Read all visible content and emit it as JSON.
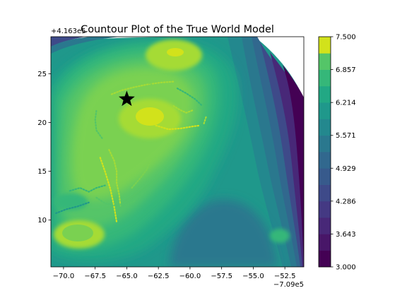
{
  "chart_data": {
    "type": "contour",
    "title": "Countour Plot of the True World Model",
    "xlabel": "",
    "ylabel": "",
    "x_offset_label": "−7.09e5",
    "y_offset_label": "+4.163e5",
    "xlim": [
      -71.0,
      -51.0
    ],
    "ylim": [
      5.2,
      28.8
    ],
    "x_ticks": [
      -70.0,
      -67.5,
      -65.0,
      -62.5,
      -60.0,
      -57.5,
      -55.0,
      -52.5
    ],
    "x_tick_labels": [
      "−70.0",
      "−67.5",
      "−65.0",
      "−62.5",
      "−60.0",
      "−57.5",
      "−55.0",
      "−52.5"
    ],
    "y_ticks": [
      10,
      15,
      20,
      25
    ],
    "y_tick_labels": [
      "10",
      "15",
      "20",
      "25"
    ],
    "colorbar": {
      "min": 3.0,
      "max": 7.5,
      "levels": [
        3.0,
        3.3214,
        3.6429,
        3.9643,
        4.2857,
        4.6071,
        4.9286,
        5.25,
        5.5714,
        5.8929,
        6.2143,
        6.5357,
        6.8571,
        7.1786,
        7.5
      ],
      "tick_labels": [
        "3.000",
        "3.643",
        "4.286",
        "4.929",
        "5.571",
        "6.214",
        "6.857",
        "7.500"
      ],
      "band_colors": [
        "#440154",
        "#481668",
        "#482878",
        "#443983",
        "#3e4a89",
        "#375a8c",
        "#31688e",
        "#2a788e",
        "#23888e",
        "#1f988b",
        "#22a884",
        "#35b779",
        "#54c568",
        "#7ad151",
        "#a5db36"
      ],
      "top_color": "#d2e21b"
    },
    "marker": {
      "shape": "star",
      "x": -65.0,
      "y": 22.4,
      "color": "#000000"
    },
    "features": [
      {
        "name": "peak-upper-right",
        "x": -61.0,
        "y": 26.4,
        "value": 7.3
      },
      {
        "name": "peak-center",
        "x": -63.0,
        "y": 20.6,
        "value": 7.3
      },
      {
        "name": "peak-lower-left",
        "x": -68.6,
        "y": 8.6,
        "value": 7.0
      },
      {
        "name": "ridge-west",
        "x": -66.5,
        "y": 14.5,
        "value": 6.4
      },
      {
        "name": "low-east",
        "x": -51.0,
        "y": 18.0,
        "value": 3.0
      }
    ],
    "traces": [
      {
        "color": "#a5db36",
        "points": [
          [
            -66.2,
            22.9
          ],
          [
            -65.4,
            23.3
          ],
          [
            -64.5,
            23.6
          ],
          [
            -63.4,
            23.9
          ],
          [
            -62.3,
            24.1
          ],
          [
            -61.2,
            24.2
          ]
        ]
      },
      {
        "color": "#a5db36",
        "points": [
          [
            -66.4,
            17.2
          ],
          [
            -66.0,
            16.1
          ],
          [
            -65.8,
            15.0
          ],
          [
            -65.8,
            13.8
          ],
          [
            -65.6,
            12.6
          ],
          [
            -65.5,
            11.5
          ]
        ]
      },
      {
        "color": "#d2e21b",
        "points": [
          [
            -67.1,
            16.4
          ],
          [
            -66.7,
            14.9
          ],
          [
            -66.3,
            13.2
          ],
          [
            -66.0,
            11.4
          ],
          [
            -65.8,
            9.8
          ]
        ]
      },
      {
        "color": "#d2e21b",
        "points": [
          [
            -62.7,
            19.7
          ],
          [
            -61.7,
            19.3
          ],
          [
            -60.7,
            19.4
          ],
          [
            -59.8,
            19.6
          ],
          [
            -59.2,
            19.7
          ]
        ]
      },
      {
        "color": "#a5db36",
        "points": [
          [
            -61.3,
            21.7
          ],
          [
            -60.8,
            21.3
          ],
          [
            -60.3,
            21.0
          ],
          [
            -59.7,
            21.3
          ]
        ]
      },
      {
        "color": "#35b779",
        "points": [
          [
            -69.5,
            13.0
          ],
          [
            -68.7,
            13.3
          ],
          [
            -68.0,
            12.9
          ],
          [
            -67.4,
            13.3
          ],
          [
            -66.6,
            13.6
          ]
        ]
      },
      {
        "color": "#54c568",
        "points": [
          [
            -67.4,
            12.3
          ],
          [
            -66.7,
            11.7
          ],
          [
            -65.9,
            11.5
          ],
          [
            -65.0,
            11.6
          ],
          [
            -64.3,
            12.0
          ]
        ]
      },
      {
        "color": "#1f988b",
        "points": [
          [
            -70.6,
            10.7
          ],
          [
            -69.8,
            11.1
          ],
          [
            -68.9,
            11.4
          ],
          [
            -68.0,
            11.8
          ]
        ]
      },
      {
        "color": "#7ad151",
        "points": [
          [
            -64.6,
            13.3
          ],
          [
            -64.0,
            14.2
          ],
          [
            -63.4,
            15.2
          ],
          [
            -63.1,
            16.3
          ]
        ]
      },
      {
        "color": "#35b779",
        "points": [
          [
            -63.6,
            11.0
          ],
          [
            -63.0,
            11.6
          ],
          [
            -62.4,
            12.1
          ],
          [
            -61.9,
            12.6
          ]
        ]
      },
      {
        "color": "#a5db36",
        "points": [
          [
            -58.9,
            19.9
          ],
          [
            -58.8,
            20.3
          ],
          [
            -58.7,
            20.7
          ]
        ]
      },
      {
        "color": "#54c568",
        "points": [
          [
            -67.4,
            21.2
          ],
          [
            -67.5,
            20.3
          ],
          [
            -67.4,
            19.2
          ],
          [
            -66.9,
            18.3
          ]
        ]
      },
      {
        "color": "#7ad151",
        "points": [
          [
            -63.4,
            24.3
          ],
          [
            -62.8,
            23.6
          ],
          [
            -62.2,
            22.9
          ],
          [
            -61.6,
            22.4
          ]
        ]
      },
      {
        "color": "#35b779",
        "points": [
          [
            -61.0,
            23.5
          ],
          [
            -60.3,
            23.0
          ],
          [
            -59.6,
            22.4
          ],
          [
            -59.1,
            21.8
          ]
        ]
      }
    ]
  }
}
